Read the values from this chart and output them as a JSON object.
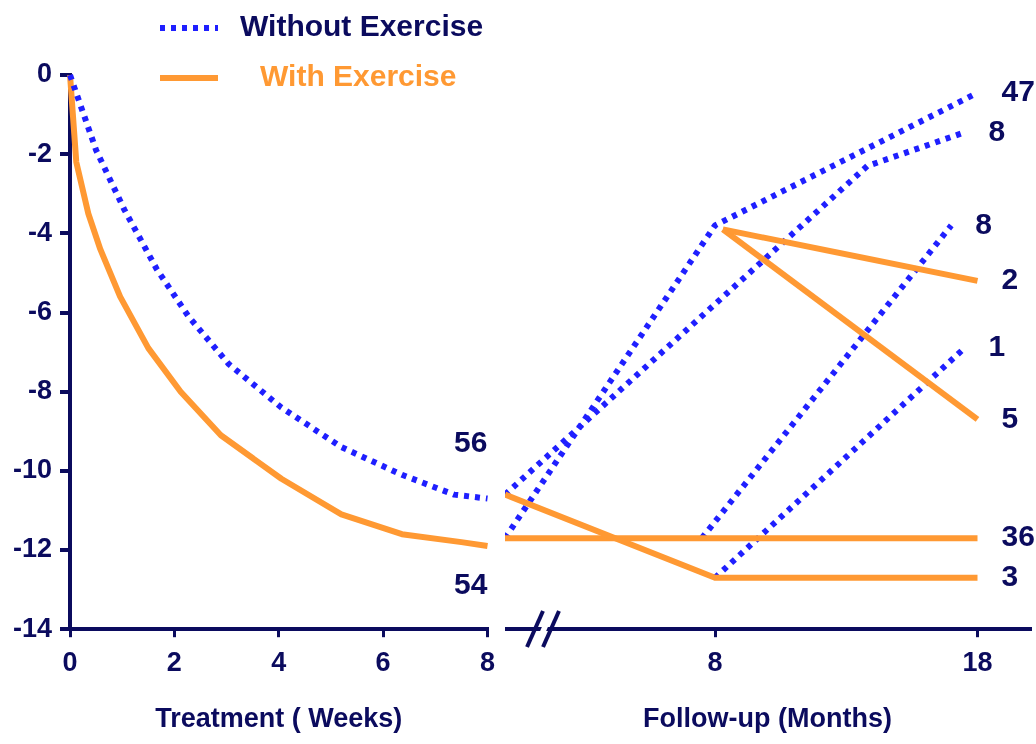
{
  "chart_data": [
    {
      "type": "line",
      "xlabel": "Treatment ( Weeks)",
      "xlim": [
        0,
        8
      ],
      "xticks": [
        0,
        2,
        4,
        6,
        8
      ],
      "ylim": [
        -14,
        0
      ],
      "yticks": [
        0,
        -2,
        -4,
        -6,
        -8,
        -10,
        -12,
        -14
      ],
      "legend": "top",
      "marker": "none",
      "grid": false,
      "series": [
        {
          "name": "Without Exercise",
          "color": "#1f1fff",
          "line_style": "dotted",
          "x": [
            0,
            0.5,
            1.04,
            1.66,
            2.27,
            3.04,
            4.05,
            5.2,
            6.36,
            7.36,
            8
          ],
          "values": [
            0,
            -1.9,
            -3.4,
            -4.9,
            -6.1,
            -7.3,
            -8.4,
            -9.4,
            -10.1,
            -10.6,
            -10.7
          ]
        },
        {
          "name": "With Exercise",
          "color": "#ff9933",
          "line_style": "solid",
          "x": [
            0,
            0.12,
            0.35,
            0.58,
            0.96,
            1.5,
            2.12,
            2.89,
            4.05,
            5.2,
            6.36,
            7.5,
            8
          ],
          "values": [
            0,
            -2.2,
            -3.5,
            -4.4,
            -5.6,
            -6.9,
            -8,
            -9.1,
            -10.2,
            -11.1,
            -11.6,
            -11.8,
            -11.9
          ]
        }
      ],
      "annotations": [
        {
          "text": "56",
          "x": 8,
          "y": -10.7
        },
        {
          "text": "54",
          "x": 8,
          "y": -11.9
        }
      ]
    },
    {
      "type": "line",
      "xlabel": "Follow-up (Months)",
      "xlim": [
        0,
        20
      ],
      "xticks": [
        8,
        18
      ],
      "ylim": [
        -14,
        0
      ],
      "tick_labels": "x",
      "marker": "none",
      "grid": false,
      "series": [
        {
          "color": "#ff9933",
          "line_style": "solid",
          "x": [
            0,
            8,
            18
          ],
          "values": [
            -10.6,
            -12.7,
            -12.7
          ]
        },
        {
          "color": "#ff9933",
          "line_style": "solid",
          "x": [
            0,
            18
          ],
          "values": [
            -11.7,
            -11.7
          ]
        },
        {
          "color": "#ff9933",
          "line_style": "solid",
          "x": [
            8.3,
            18
          ],
          "values": [
            -3.9,
            -5.2
          ]
        },
        {
          "color": "#ff9933",
          "line_style": "solid",
          "x": [
            8.3,
            18
          ],
          "values": [
            -3.9,
            -8.7
          ]
        },
        {
          "color": "#1f1fff",
          "line_style": "dotted",
          "x": [
            0,
            8,
            18
          ],
          "values": [
            -11.7,
            -3.8,
            -0.45
          ]
        },
        {
          "color": "#1f1fff",
          "line_style": "dotted",
          "x": [
            0,
            13.8,
            17.5
          ],
          "values": [
            -10.6,
            -2.3,
            -1.45
          ]
        },
        {
          "color": "#1f1fff",
          "line_style": "dotted",
          "x": [
            7.5,
            17
          ],
          "values": [
            -11.7,
            -3.8
          ]
        },
        {
          "color": "#1f1fff",
          "line_style": "dotted",
          "x": [
            8,
            17.5
          ],
          "values": [
            -12.7,
            -6.9
          ]
        }
      ],
      "annotations": [
        {
          "text": "47",
          "x": 18,
          "y": -0.45
        },
        {
          "text": "8",
          "x": 17.5,
          "y": -1.45
        },
        {
          "text": "8",
          "x": 17,
          "y": -3.8
        },
        {
          "text": "2",
          "x": 18,
          "y": -5.2
        },
        {
          "text": "1",
          "x": 17.5,
          "y": -6.9
        },
        {
          "text": "5",
          "x": 18,
          "y": -8.7
        },
        {
          "text": "36",
          "x": 18,
          "y": -11.7
        },
        {
          "text": "3",
          "x": 18,
          "y": -12.7
        }
      ]
    }
  ]
}
